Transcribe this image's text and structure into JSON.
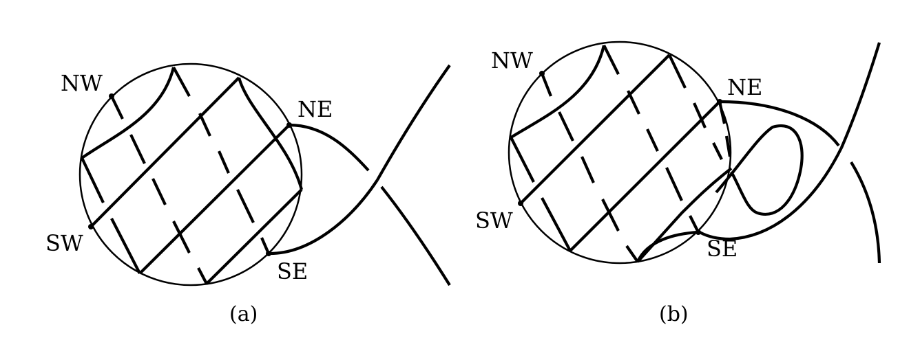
{
  "panels": [
    {
      "caption": "(a)",
      "labels": {
        "nw": "NW",
        "ne": "NE",
        "sw": "SW",
        "se": "SE"
      }
    },
    {
      "caption": "(b)",
      "labels": {
        "nw": "NW",
        "ne": "NE",
        "sw": "SW",
        "se": "SE"
      }
    }
  ]
}
